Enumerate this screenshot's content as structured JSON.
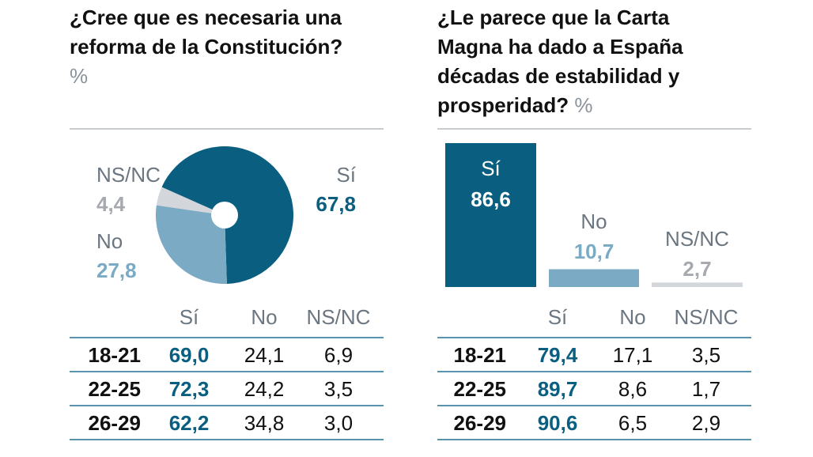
{
  "colors": {
    "si": "#0a5f80",
    "no": "#7aaac4",
    "nsnc": "#d3d6da",
    "nsnc_text": "#a6a9ae",
    "label": "#6b7680"
  },
  "chart_data": [
    {
      "type": "pie",
      "title": "¿Cree que es necesaria una reforma de la Constitución?",
      "title_lines": [
        "¿Cree que es necesaria una",
        "reforma de la Constitución?"
      ],
      "unit": "%",
      "categories": [
        "Sí",
        "No",
        "NS/NC"
      ],
      "values": [
        67.8,
        27.8,
        4.4
      ],
      "value_labels": [
        "67,8",
        "27,8",
        "4,4"
      ],
      "table": {
        "columns": [
          "Sí",
          "No",
          "NS/NC"
        ],
        "rows": [
          {
            "label": "18-21",
            "values": [
              "69,0",
              "24,1",
              "6,9"
            ]
          },
          {
            "label": "22-25",
            "values": [
              "72,3",
              "24,2",
              "3,5"
            ]
          },
          {
            "label": "26-29",
            "values": [
              "62,2",
              "34,8",
              "3,0"
            ]
          }
        ]
      }
    },
    {
      "type": "bar",
      "title": "¿Le parece que la Carta Magna ha dado a España décadas de estabilidad y prosperidad?",
      "title_lines": [
        "¿Le parece que la Carta",
        "Magna ha dado a España",
        "décadas de estabilidad y",
        "prosperidad?"
      ],
      "unit": "%",
      "categories": [
        "Sí",
        "No",
        "NS/NC"
      ],
      "values": [
        86.6,
        10.7,
        2.7
      ],
      "value_labels": [
        "86,6",
        "10,7",
        "2,7"
      ],
      "table": {
        "columns": [
          "Sí",
          "No",
          "NS/NC"
        ],
        "rows": [
          {
            "label": "18-21",
            "values": [
              "79,4",
              "17,1",
              "3,5"
            ]
          },
          {
            "label": "22-25",
            "values": [
              "89,7",
              "8,6",
              "1,7"
            ]
          },
          {
            "label": "26-29",
            "values": [
              "90,6",
              "6,5",
              "2,9"
            ]
          }
        ]
      }
    }
  ]
}
